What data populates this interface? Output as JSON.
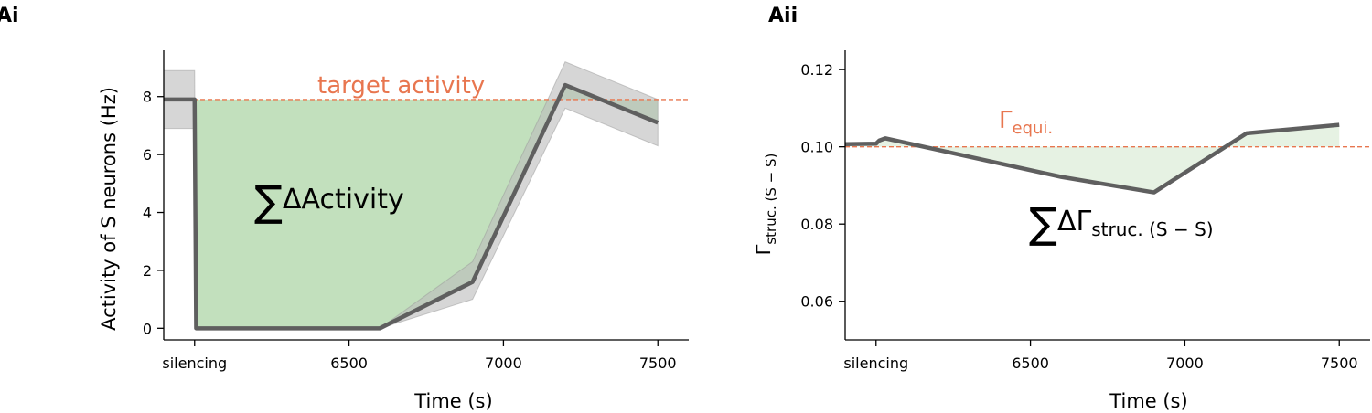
{
  "chart_data": [
    {
      "panel": "Ai",
      "type": "line",
      "xlabel": "Time (s)",
      "ylabel": "Activity of S neurons (Hz)",
      "xlim": [
        5900,
        7600
      ],
      "ylim": [
        -0.4,
        9.6
      ],
      "x_ticks": [
        {
          "value": 6000,
          "label": "silencing"
        },
        {
          "value": 6500,
          "label": "6500"
        },
        {
          "value": 7000,
          "label": "7000"
        },
        {
          "value": 7500,
          "label": "7500"
        }
      ],
      "y_ticks": [
        0,
        2,
        4,
        6,
        8
      ],
      "target_line": {
        "value": 7.9,
        "label": "target activity",
        "color": "#e8764f"
      },
      "series": [
        {
          "x": [
            5900,
            6000,
            6005,
            6600,
            6900,
            7200,
            7500
          ],
          "y": [
            7.9,
            7.9,
            0.0,
            0.0,
            1.6,
            8.4,
            7.1
          ],
          "band_upper": [
            8.9,
            8.9,
            0.0,
            0.0,
            2.3,
            9.2,
            7.9
          ],
          "band_lower": [
            6.9,
            6.9,
            0.0,
            0.0,
            1.0,
            7.6,
            6.3
          ],
          "color": "#5f5f5f",
          "band_color": "#bbbbbb"
        }
      ],
      "fill_color": "#b7dbb2",
      "annotation": {
        "sigma": "∑",
        "text": "ΔActivity"
      }
    },
    {
      "panel": "Aii",
      "type": "line",
      "xlabel": "Time (s)",
      "ylabel_main": "Γ",
      "ylabel_sub": "struc. (S − S)",
      "xlim": [
        5900,
        7600
      ],
      "ylim": [
        0.05,
        0.125
      ],
      "x_ticks": [
        {
          "value": 6000,
          "label": "silencing"
        },
        {
          "value": 6500,
          "label": "6500"
        },
        {
          "value": 7000,
          "label": "7000"
        },
        {
          "value": 7500,
          "label": "7500"
        }
      ],
      "y_ticks": [
        {
          "value": 0.06,
          "label": "0.06"
        },
        {
          "value": 0.08,
          "label": "0.08"
        },
        {
          "value": 0.1,
          "label": "0.10"
        },
        {
          "value": 0.12,
          "label": "0.12"
        }
      ],
      "target_line": {
        "value": 0.1,
        "label_main": "Γ",
        "label_sub": "equi.",
        "color": "#e8764f"
      },
      "series": [
        {
          "x": [
            5900,
            6000,
            6010,
            6030,
            6600,
            6900,
            7200,
            7500
          ],
          "y": [
            0.1007,
            0.1008,
            0.1016,
            0.1022,
            0.0922,
            0.0882,
            0.1035,
            0.1057
          ],
          "color": "#5f5f5f"
        }
      ],
      "fill_color": "#e6f2e3",
      "annotation": {
        "sigma": "∑",
        "text_main": "ΔΓ",
        "text_sub": "struc. (S − S)"
      }
    }
  ]
}
